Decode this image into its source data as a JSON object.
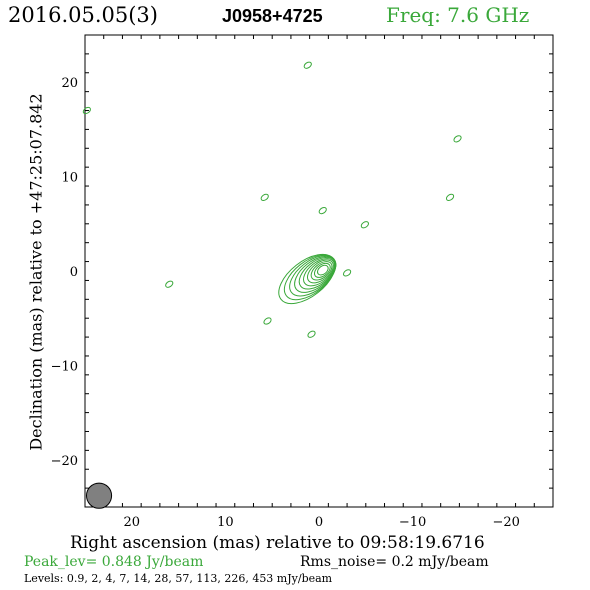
{
  "header": {
    "date": "2016.05.05(3)",
    "source": "J0958+4725",
    "freq": "Freq: 7.6 GHz"
  },
  "footer": {
    "peak": "Peak_lev=  0.848 Jy/beam",
    "rms": "Rms_noise=  0.2 mJy/beam",
    "levels": "Levels: 0.9,   2,   4,   7,  14,  28,  57, 113, 226, 453 mJy/beam"
  },
  "colors": {
    "contour": "#3aa83a",
    "beam": "#808080",
    "frame": "#000000"
  },
  "chart_data": {
    "type": "contour",
    "xlabel": "Right ascension (mas) relative to 09:58:19.6716",
    "ylabel": "Declination (mas) relative to +47:25:07.842",
    "xlim": [
      25,
      -25
    ],
    "ylim": [
      -25,
      25
    ],
    "x_ticks": [
      20,
      10,
      0,
      -10,
      -20
    ],
    "x_tick_labels": [
      "20",
      "10",
      "0",
      "−10",
      "−20"
    ],
    "y_ticks": [
      20,
      10,
      0,
      -10,
      -20
    ],
    "y_tick_labels": [
      "20",
      "10",
      "0",
      "−10",
      "−20"
    ],
    "grid": false,
    "levels_mJy": [
      0.9,
      2,
      4,
      7,
      14,
      28,
      57,
      113,
      226,
      453
    ],
    "peak_Jy_per_beam": 0.848,
    "rms_mJy_per_beam": 0.2,
    "core": {
      "x": 0,
      "y": 0
    },
    "beam": {
      "x": 23.5,
      "y": -23.8,
      "major": 1.4,
      "minor": 1.4
    },
    "islands": [
      {
        "x": 1.2,
        "y": 21.8
      },
      {
        "x": 24.8,
        "y": 17.0
      },
      {
        "x": -14.8,
        "y": 14.0
      },
      {
        "x": 5.8,
        "y": 7.8
      },
      {
        "x": -14.0,
        "y": 7.8
      },
      {
        "x": -0.4,
        "y": 6.4
      },
      {
        "x": -4.9,
        "y": 4.9
      },
      {
        "x": -3.0,
        "y": -0.2
      },
      {
        "x": 16.0,
        "y": -1.4
      },
      {
        "x": 5.5,
        "y": -5.3
      },
      {
        "x": 0.8,
        "y": -6.7
      }
    ]
  }
}
